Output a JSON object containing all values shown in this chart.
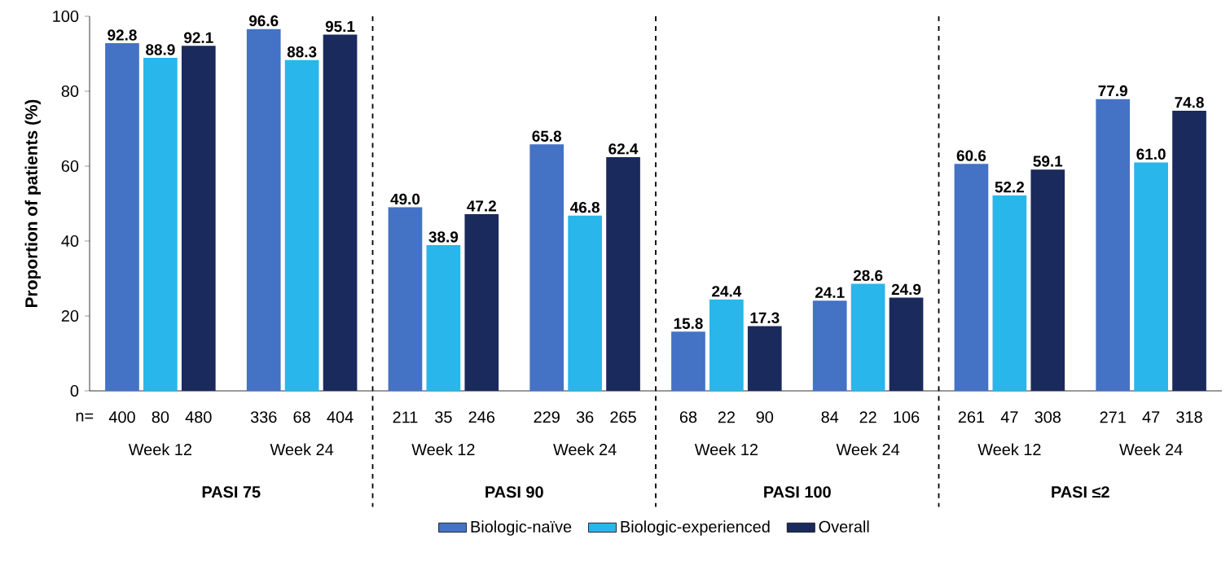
{
  "chart_data": {
    "type": "bar",
    "ylabel": "Proportion of patients (%)",
    "categories": [
      "Week 12",
      "Week 24",
      "Week 12",
      "Week 24",
      "Week 12",
      "Week 24",
      "Week 12",
      "Week 24"
    ],
    "series": [
      {
        "name": "Biologic-naïve",
        "color": "#4472c4",
        "values": [
          92.8,
          96.6,
          49.0,
          65.8,
          15.8,
          24.1,
          60.6,
          77.9
        ],
        "value_labels": [
          "92.8",
          "96.6",
          "49.0",
          "65.8",
          "15.8",
          "24.1",
          "60.6",
          "77.9"
        ]
      },
      {
        "name": "Biologic-experienced",
        "color": "#29b6ea",
        "values": [
          88.9,
          88.3,
          38.9,
          46.8,
          24.4,
          28.6,
          52.2,
          61.0
        ],
        "value_labels": [
          "88.9",
          "88.3",
          "38.9",
          "46.8",
          "24.4",
          "28.6",
          "52.2",
          "61.0"
        ]
      },
      {
        "name": "Overall",
        "color": "#1b2a5c",
        "values": [
          92.1,
          95.1,
          47.2,
          62.4,
          17.3,
          24.9,
          59.1,
          74.8
        ],
        "value_labels": [
          "92.1",
          "95.1",
          "47.2",
          "62.4",
          "17.3",
          "24.9",
          "59.1",
          "74.8"
        ]
      }
    ],
    "ylim": [
      0,
      100
    ],
    "yticks": [
      0,
      20,
      40,
      60,
      80,
      100
    ],
    "legend": "bottom",
    "grid": false,
    "annotations": [
      "n=",
      "400",
      "80",
      "480",
      "336",
      "68",
      "404",
      "211",
      "35",
      "246",
      "229",
      "36",
      "265",
      "68",
      "22",
      "90",
      "84",
      "22",
      "106",
      "261",
      "47",
      "308",
      "271",
      "47",
      "318",
      "PASI 75",
      "PASI 90",
      "PASI 100",
      "PASI ≤2"
    ]
  }
}
